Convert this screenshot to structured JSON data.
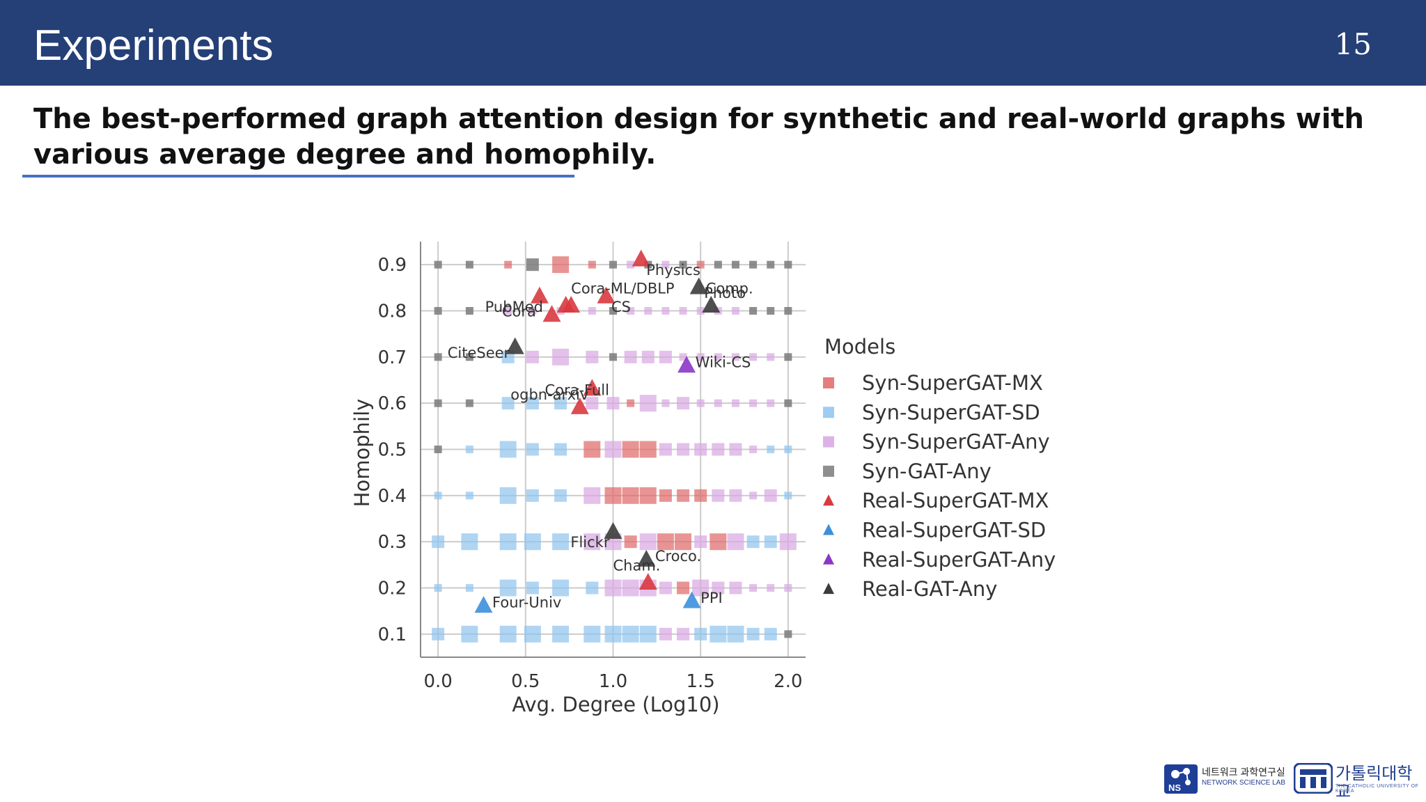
{
  "slide": {
    "title": "Experiments",
    "page_number": "15",
    "subtitle": "The best-performed graph attention design for synthetic and real-world graphs with various average degree and homophily."
  },
  "colors": {
    "header_bg": "#253f77",
    "rule": "#4472c4",
    "mx": "#e06666",
    "sd": "#8ec3ee",
    "any": "#d7a6e3",
    "gat": "#7a7a7a",
    "real_mx": "#d9393f",
    "real_sd": "#3d8fdc",
    "real_any": "#8a37c6",
    "real_gat": "#3c3c3c"
  },
  "footer": {
    "lab_name_ko": "네트워크 과학연구실",
    "lab_name_en": "NETWORK SCIENCE LAB",
    "lab_badge": "NS",
    "university_ko": "가톨릭대학교",
    "university_en": "THE CATHOLIC UNIVERSITY OF KOREA"
  },
  "chart_data": {
    "type": "scatter",
    "title": "",
    "xlabel": "Avg. Degree (Log10)",
    "ylabel": "Homophily",
    "xlim": [
      -0.1,
      2.1
    ],
    "ylim": [
      0.05,
      0.95
    ],
    "xticks": [
      0.0,
      0.5,
      1.0,
      1.5,
      2.0
    ],
    "yticks": [
      0.1,
      0.2,
      0.3,
      0.4,
      0.5,
      0.6,
      0.7,
      0.8,
      0.9
    ],
    "grid": true,
    "legend": {
      "title": "Models",
      "placement": "right",
      "entries": [
        {
          "label": "Syn-SuperGAT-MX",
          "marker": "square",
          "color": "#e06666"
        },
        {
          "label": "Syn-SuperGAT-SD",
          "marker": "square",
          "color": "#8ec3ee"
        },
        {
          "label": "Syn-SuperGAT-Any",
          "marker": "square",
          "color": "#d7a6e3"
        },
        {
          "label": "Syn-GAT-Any",
          "marker": "square",
          "color": "#7a7a7a"
        },
        {
          "label": "Real-SuperGAT-MX",
          "marker": "triangle",
          "color": "#d9393f"
        },
        {
          "label": "Real-SuperGAT-SD",
          "marker": "triangle",
          "color": "#3d8fdc"
        },
        {
          "label": "Real-SuperGAT-Any",
          "marker": "triangle",
          "color": "#8a37c6"
        },
        {
          "label": "Real-GAT-Any",
          "marker": "triangle",
          "color": "#3c3c3c"
        }
      ]
    },
    "synthetic_x": [
      0.0,
      0.18,
      0.4,
      0.54,
      0.7,
      0.88,
      1.0,
      1.1,
      1.2,
      1.3,
      1.4,
      1.5,
      1.6,
      1.7,
      1.8,
      1.9,
      2.0
    ],
    "synthetic_rows": [
      {
        "y": 0.9,
        "models": [
          "gat",
          "gat",
          "mx",
          "gat",
          "mx",
          "mx",
          "gat",
          "any",
          "gat",
          "any",
          "gat",
          "mx",
          "gat",
          "gat",
          "gat",
          "gat",
          "gat"
        ],
        "sizes": [
          1,
          1,
          1,
          2,
          3,
          1,
          1,
          1,
          1,
          1,
          1,
          1,
          1,
          1,
          1,
          1,
          1
        ]
      },
      {
        "y": 0.8,
        "models": [
          "gat",
          "gat",
          "any",
          "any",
          "any",
          "any",
          "gat",
          "any",
          "any",
          "any",
          "any",
          "any",
          "any",
          "any",
          "gat",
          "gat",
          "gat"
        ],
        "sizes": [
          1,
          1,
          1,
          1,
          1,
          1,
          1,
          1,
          1,
          1,
          1,
          1,
          1,
          1,
          1,
          1,
          1
        ]
      },
      {
        "y": 0.7,
        "models": [
          "gat",
          "gat",
          "sd",
          "any",
          "any",
          "any",
          "gat",
          "any",
          "any",
          "any",
          "any",
          "any",
          "any",
          "any",
          "any",
          "any",
          "gat"
        ],
        "sizes": [
          1,
          1,
          2,
          2,
          3,
          2,
          1,
          2,
          2,
          2,
          1,
          1,
          1,
          1,
          1,
          1,
          1
        ]
      },
      {
        "y": 0.6,
        "models": [
          "gat",
          "gat",
          "sd",
          "sd",
          "sd",
          "any",
          "any",
          "mx",
          "any",
          "any",
          "any",
          "any",
          "any",
          "any",
          "any",
          "any",
          "gat"
        ],
        "sizes": [
          1,
          1,
          2,
          2,
          2,
          2,
          2,
          1,
          3,
          1,
          2,
          1,
          1,
          1,
          1,
          1,
          1
        ]
      },
      {
        "y": 0.5,
        "models": [
          "gat",
          "sd",
          "sd",
          "sd",
          "sd",
          "mx",
          "any",
          "mx",
          "mx",
          "any",
          "any",
          "any",
          "any",
          "any",
          "any",
          "sd",
          "sd"
        ],
        "sizes": [
          1,
          1,
          3,
          2,
          2,
          3,
          3,
          3,
          3,
          2,
          2,
          2,
          2,
          2,
          1,
          1,
          1
        ]
      },
      {
        "y": 0.4,
        "models": [
          "sd",
          "sd",
          "sd",
          "sd",
          "sd",
          "any",
          "mx",
          "mx",
          "mx",
          "mx",
          "mx",
          "mx",
          "any",
          "any",
          "any",
          "any",
          "sd"
        ],
        "sizes": [
          1,
          1,
          3,
          2,
          2,
          3,
          3,
          3,
          3,
          2,
          2,
          2,
          2,
          2,
          1,
          2,
          1
        ]
      },
      {
        "y": 0.3,
        "models": [
          "sd",
          "sd",
          "sd",
          "sd",
          "sd",
          "any",
          "any",
          "mx",
          "any",
          "mx",
          "mx",
          "any",
          "mx",
          "any",
          "sd",
          "sd",
          "any"
        ],
        "sizes": [
          2,
          3,
          3,
          3,
          3,
          3,
          3,
          2,
          3,
          3,
          3,
          2,
          3,
          3,
          2,
          2,
          3
        ]
      },
      {
        "y": 0.2,
        "models": [
          "sd",
          "sd",
          "sd",
          "sd",
          "sd",
          "sd",
          "any",
          "any",
          "any",
          "any",
          "mx",
          "any",
          "any",
          "any",
          "any",
          "any",
          "any"
        ],
        "sizes": [
          1,
          1,
          3,
          2,
          3,
          2,
          3,
          3,
          3,
          2,
          2,
          3,
          2,
          2,
          1,
          1,
          1
        ]
      },
      {
        "y": 0.1,
        "models": [
          "sd",
          "sd",
          "sd",
          "sd",
          "sd",
          "sd",
          "sd",
          "sd",
          "sd",
          "any",
          "any",
          "sd",
          "sd",
          "sd",
          "sd",
          "sd",
          "gat"
        ],
        "sizes": [
          2,
          3,
          3,
          3,
          3,
          3,
          3,
          3,
          3,
          2,
          2,
          2,
          3,
          3,
          2,
          2,
          1
        ]
      }
    ],
    "real_points": [
      {
        "name": "Physics",
        "x": 1.16,
        "y": 0.91,
        "model": "Real-SuperGAT-MX",
        "label_dx": 0.03,
        "label_dy": 0.02,
        "anchor": "start"
      },
      {
        "name": "Cora",
        "x": 0.58,
        "y": 0.83,
        "model": "Real-SuperGAT-MX",
        "label_dx": -0.02,
        "label_dy": 0.03,
        "anchor": "end"
      },
      {
        "name": "PubMed",
        "x": 0.65,
        "y": 0.79,
        "model": "Real-SuperGAT-MX",
        "label_dx": -0.05,
        "label_dy": -0.02,
        "anchor": "end"
      },
      {
        "name": "CS",
        "x": 0.96,
        "y": 0.83,
        "model": "Real-SuperGAT-MX",
        "label_dx": 0.03,
        "label_dy": 0.02,
        "anchor": "start"
      },
      {
        "name": "Cora-ML/DBLP",
        "x": 0.76,
        "y": 0.81,
        "model": "Real-SuperGAT-MX",
        "label_dx": 0.0,
        "label_dy": -0.04,
        "anchor": "start"
      },
      {
        "name": "",
        "x": 0.73,
        "y": 0.81,
        "model": "Real-SuperGAT-MX",
        "label_dx": 0,
        "label_dy": 0,
        "anchor": "start"
      },
      {
        "name": "Photo",
        "x": 1.49,
        "y": 0.85,
        "model": "Real-GAT-Any",
        "label_dx": 0.03,
        "label_dy": 0.01,
        "anchor": "start"
      },
      {
        "name": "Comp.",
        "x": 1.56,
        "y": 0.81,
        "model": "Real-GAT-Any",
        "label_dx": -0.03,
        "label_dy": -0.04,
        "anchor": "start"
      },
      {
        "name": "CiteSeer",
        "x": 0.44,
        "y": 0.72,
        "model": "Real-GAT-Any",
        "label_dx": -0.03,
        "label_dy": 0.01,
        "anchor": "end"
      },
      {
        "name": "Wiki-CS",
        "x": 1.42,
        "y": 0.68,
        "model": "Real-SuperGAT-Any",
        "label_dx": 0.05,
        "label_dy": -0.01,
        "anchor": "start"
      },
      {
        "name": "ogbn-arxiv",
        "x": 0.88,
        "y": 0.63,
        "model": "Real-SuperGAT-MX",
        "label_dx": -0.02,
        "label_dy": 0.01,
        "anchor": "end"
      },
      {
        "name": "Cora-Full",
        "x": 0.81,
        "y": 0.59,
        "model": "Real-SuperGAT-MX",
        "label_dx": -0.2,
        "label_dy": -0.04,
        "anchor": "start"
      },
      {
        "name": "Flickr",
        "x": 1.0,
        "y": 0.32,
        "model": "Real-GAT-Any",
        "label_dx": -0.02,
        "label_dy": 0.02,
        "anchor": "end"
      },
      {
        "name": "Croco.",
        "x": 1.19,
        "y": 0.26,
        "model": "Real-GAT-Any",
        "label_dx": 0.05,
        "label_dy": -0.01,
        "anchor": "start"
      },
      {
        "name": "Cham.",
        "x": 1.2,
        "y": 0.21,
        "model": "Real-SuperGAT-MX",
        "label_dx": -0.2,
        "label_dy": -0.04,
        "anchor": "start"
      },
      {
        "name": "Four-Univ",
        "x": 0.26,
        "y": 0.16,
        "model": "Real-SuperGAT-SD",
        "label_dx": 0.05,
        "label_dy": -0.01,
        "anchor": "start"
      },
      {
        "name": "PPI",
        "x": 1.45,
        "y": 0.17,
        "model": "Real-SuperGAT-SD",
        "label_dx": 0.05,
        "label_dy": -0.01,
        "anchor": "start"
      }
    ]
  }
}
